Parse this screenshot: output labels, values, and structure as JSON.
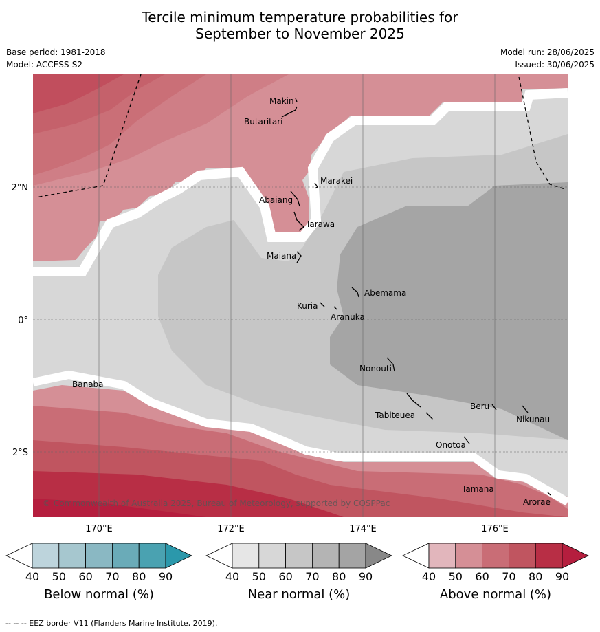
{
  "title_line1": "Tercile minimum temperature probabilities for",
  "title_line2": "September to November 2025",
  "base_period": "Base period: 1981-2018",
  "model": "Model: ACCESS-S2",
  "model_run": "Model run: 28/06/2025",
  "issued": "Issued: 30/06/2025",
  "copyright": "© Commonwealth of Australia 2025, Bureau of Meteorology, supported by COSPPac",
  "footer": "--  --  -- EEZ border V11 (Flanders Marine Institute, 2019).",
  "axes": {
    "lon_ticks": [
      "170°E",
      "172°E",
      "174°E",
      "176°E"
    ],
    "lat_ticks": [
      "2°N",
      "0°",
      "2°S"
    ]
  },
  "places": [
    "Makin",
    "Butaritari",
    "Marakei",
    "Abaiang",
    "Tarawa",
    "Maiana",
    "Abemama",
    "Kuria",
    "Aranuka",
    "Nonouti",
    "Banaba",
    "Tabiteuea",
    "Beru",
    "Nikunau",
    "Onotoa",
    "Tamana",
    "Arorae"
  ],
  "legends": [
    {
      "label": "Below normal (%)",
      "ticks": [
        "40",
        "50",
        "60",
        "70",
        "80",
        "90"
      ],
      "colors": [
        "#bdd4dc",
        "#a6c7cf",
        "#8ab8c3",
        "#6aabb8",
        "#4aa2b1",
        "#2b98ab"
      ]
    },
    {
      "label": "Near normal (%)",
      "ticks": [
        "40",
        "50",
        "60",
        "70",
        "80",
        "90"
      ],
      "colors": [
        "#e6e6e6",
        "#d7d7d7",
        "#c6c6c6",
        "#b4b4b4",
        "#a4a4a4",
        "#888888"
      ]
    },
    {
      "label": "Above normal (%)",
      "ticks": [
        "40",
        "50",
        "60",
        "70",
        "80",
        "90"
      ],
      "colors": [
        "#e2b6bc",
        "#d58f96",
        "#c96d76",
        "#c05560",
        "#b82e45",
        "#b51e3e"
      ]
    }
  ]
}
